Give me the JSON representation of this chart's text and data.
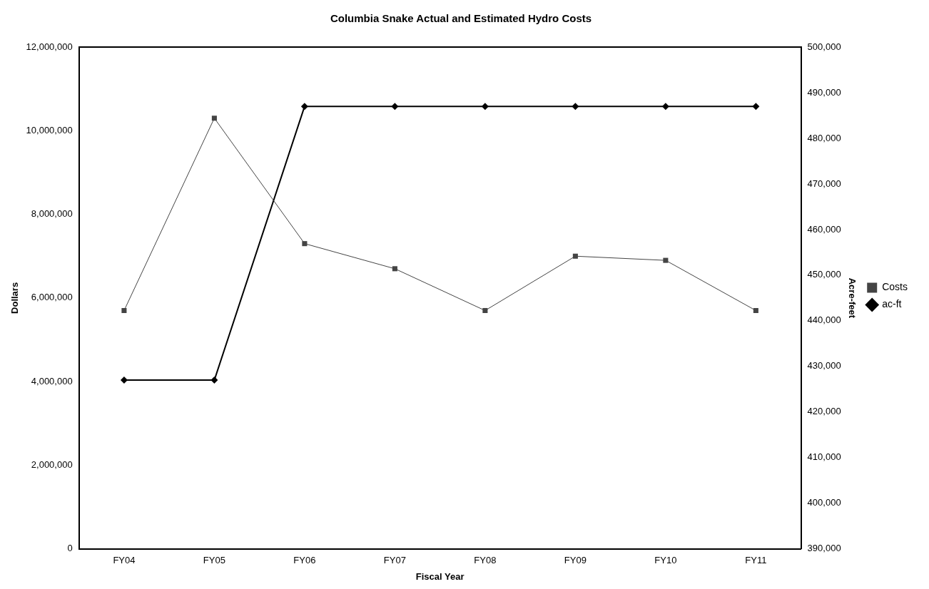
{
  "chart_data": {
    "type": "line",
    "title": "Columbia Snake Actual and Estimated Hydro Costs",
    "xlabel": "Fiscal Year",
    "ylabel": "Dollars",
    "y2label": "Acre-feet",
    "categories": [
      "FY04",
      "FY05",
      "FY06",
      "FY07",
      "FY08",
      "FY09",
      "FY10",
      "FY11"
    ],
    "series": [
      {
        "name": "Costs",
        "color": "#444444",
        "marker": "square",
        "values": [
          5700000,
          10300000,
          7300000,
          6700000,
          5700000,
          7000000,
          6900000,
          5700000
        ]
      },
      {
        "name": "ac-ft",
        "color": "#000000",
        "marker": "diamond",
        "axis": "y2",
        "values": [
          427000,
          427000,
          487000,
          487000,
          487000,
          487000,
          487000,
          487000
        ]
      }
    ],
    "ylim": [
      0,
      12000000
    ],
    "yticks": [
      0,
      {
        "value": 2000000,
        "label": "2,000,000"
      },
      {
        "value": 4000000,
        "label": "4,000,000"
      },
      {
        "value": 6000000,
        "label": "6,000,000"
      },
      {
        "value": 8000000,
        "label": "8,000,000"
      },
      {
        "value": 10000000,
        "label": "10,000,000"
      },
      {
        "value": 12000000,
        "label": "12,000,000"
      }
    ],
    "y2lim": [
      390000,
      500000
    ],
    "y2ticks": [
      {
        "value": 390000,
        "label": "390,000"
      },
      {
        "value": 400000,
        "label": "400,000"
      },
      {
        "value": 410000,
        "label": "410,000"
      },
      {
        "value": 420000,
        "label": "420,000"
      },
      {
        "value": 430000,
        "label": "430,000"
      },
      {
        "value": 440000,
        "label": "440,000"
      },
      {
        "value": 450000,
        "label": "450,000"
      },
      {
        "value": 460000,
        "label": "460,000"
      },
      {
        "value": 470000,
        "label": "470,000"
      },
      {
        "value": 480000,
        "label": "480,000"
      },
      {
        "value": 490000,
        "label": "490,000"
      },
      {
        "value": 500000,
        "label": "500,000"
      }
    ],
    "grid": false,
    "legend": "right",
    "line_style": "solid"
  }
}
